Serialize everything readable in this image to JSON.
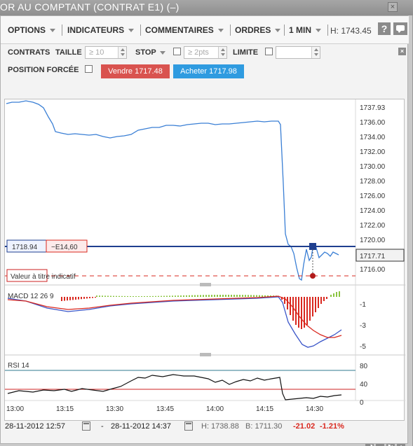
{
  "window": {
    "title": "OR AU COMPTANT (CONTRAT E1) (–)",
    "title_close": "×"
  },
  "menu": {
    "options": "OPTIONS",
    "indicators": "INDICATEURS",
    "comments": "COMMENTAIRES",
    "orders": "ORDRES",
    "interval": "1 MIN",
    "high": "H: 1743.45",
    "help": "?"
  },
  "order": {
    "contracts_label": "CONTRATS",
    "size_label": "TAILLE",
    "size_value": "≥ 10",
    "stop_label": "STOP",
    "stop_value": "≥ 2pts",
    "limit_label": "LIMITE",
    "forced_label": "POSITION FORCÉE",
    "sell_button": "Vendre 1717.48",
    "buy_button": "Acheter 1717.98",
    "close": "×"
  },
  "colors": {
    "price_line": "#3a7fd5",
    "position_line": "#1f3f8f",
    "sell": "#d9534f",
    "buy": "#2f9be0",
    "macd_red": "#d9281f",
    "macd_green": "#8ac43f"
  },
  "chart": {
    "position_price": "1718.94",
    "position_pnl": "−E14,60",
    "indicative": "Valeur à titre indicatif",
    "last_price": "1717.71",
    "macd_label": "MACD 12 26 9",
    "rsi_label": "RSI 14",
    "y_ticks": [
      "1737.93",
      "1736.00",
      "1734.00",
      "1732.00",
      "1730.00",
      "1728.00",
      "1726.00",
      "1724.00",
      "1722.00",
      "1720.00",
      "1716.00"
    ],
    "macd_ticks": [
      "-1",
      "-3",
      "-5"
    ],
    "rsi_ticks": [
      "80",
      "40",
      "0"
    ],
    "x_ticks": [
      "13:00",
      "13:15",
      "13:30",
      "13:45",
      "14:00",
      "14:15",
      "14:30"
    ]
  },
  "footer": {
    "from": "28-11-2012 12:57",
    "dash": "-",
    "to": "28-11-2012 14:37",
    "high": "H: 1738.88",
    "low": "B: 1711.30",
    "change": "-21.02",
    "change_pct": "-1.21%"
  },
  "controls": [
    "fit-icon",
    "zoom-out-icon",
    "reset-icon",
    "zoom-in-icon"
  ]
}
